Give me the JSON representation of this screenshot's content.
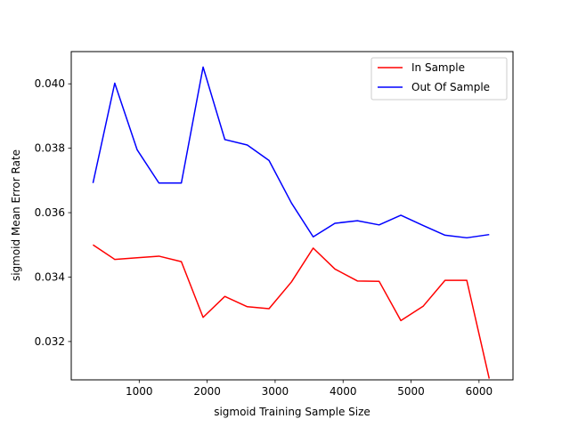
{
  "chart_data": {
    "type": "line",
    "title": "",
    "xlabel": "sigmoid Training Sample Size",
    "ylabel": "sigmoid Mean Error Rate",
    "xlim": [
      0,
      6500
    ],
    "ylim": [
      0.03081,
      0.041
    ],
    "x_ticks": [
      1000,
      2000,
      3000,
      4000,
      5000,
      6000
    ],
    "x_tick_labels": [
      "1000",
      "2000",
      "3000",
      "4000",
      "5000",
      "6000"
    ],
    "y_ticks": [
      0.032,
      0.034,
      0.036,
      0.038,
      0.04
    ],
    "y_tick_labels": [
      "0.032",
      "0.034",
      "0.036",
      "0.038",
      "0.040"
    ],
    "grid": false,
    "legend_position": "top-right",
    "x": [
      320,
      640,
      970,
      1290,
      1620,
      1940,
      2260,
      2590,
      2910,
      3240,
      3560,
      3880,
      4210,
      4530,
      4850,
      5180,
      5500,
      5820,
      6150
    ],
    "series": [
      {
        "name": "In Sample",
        "color": "#ff0000",
        "values": [
          0.035,
          0.03455,
          0.0346,
          0.03465,
          0.03448,
          0.03275,
          0.0334,
          0.03308,
          0.03302,
          0.03385,
          0.0349,
          0.03425,
          0.03388,
          0.03387,
          0.03265,
          0.0331,
          0.0339,
          0.0339,
          0.03085
        ]
      },
      {
        "name": "Out Of Sample",
        "color": "#0000ff",
        "values": [
          0.03692,
          0.04002,
          0.03795,
          0.03692,
          0.03692,
          0.04052,
          0.03827,
          0.0381,
          0.03762,
          0.0363,
          0.03525,
          0.03567,
          0.03575,
          0.03562,
          0.03592,
          0.0356,
          0.0353,
          0.03522,
          0.03532
        ]
      }
    ]
  }
}
